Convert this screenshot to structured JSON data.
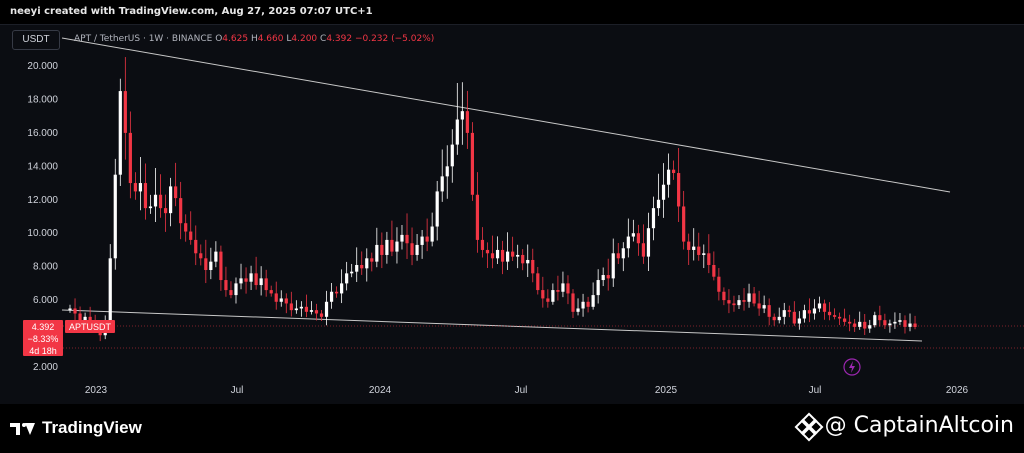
{
  "header": {
    "creator": "neeyi created with TradingView.com, Aug 27, 2025 07:07 UTC+1",
    "currency": "USDT"
  },
  "symbol": {
    "name": "APT / TetherUS · 1W · BINANCE",
    "o_label": "O",
    "o_value": "4.625",
    "h_label": "H",
    "h_value": "4.660",
    "l_label": "L",
    "l_value": "4.200",
    "c_label": "C",
    "c_value": "4.392",
    "change": "−0.232 (−5.02%)"
  },
  "price_tag": {
    "price": "4.392",
    "ticker": "APTUSDT",
    "change_pct": "−8.33%",
    "countdown": "4d 18h"
  },
  "footer": {
    "platform": "TradingView",
    "watermark": "@ CaptainAltcoin"
  },
  "colors": {
    "up": "#ffffff",
    "down": "#f23645",
    "trendline": "#c8c8c8",
    "background": "#0b0d12"
  },
  "chart_data": {
    "type": "candlestick",
    "title": "APT / TetherUS · 1W · BINANCE",
    "y_axis": {
      "ticks": [
        "20.000",
        "18.000",
        "16.000",
        "14.000",
        "12.000",
        "10.000",
        "8.000",
        "6.000",
        "4.000",
        "2.000"
      ],
      "range": [
        2,
        20
      ],
      "side": "left"
    },
    "x_axis": {
      "ticks": [
        "2023",
        "Jul",
        "2024",
        "Jul",
        "2025",
        "Jul",
        "2026"
      ]
    },
    "grid": false,
    "legend": "none",
    "closes": [
      5.5,
      5.2,
      4.8,
      5.0,
      4.7,
      4.4,
      3.9,
      4.5,
      8.5,
      13.5,
      18.5,
      16.0,
      13.0,
      12.5,
      13.0,
      11.5,
      11.6,
      12.3,
      11.5,
      11.2,
      12.8,
      12.1,
      10.6,
      10.1,
      9.6,
      8.8,
      8.5,
      7.8,
      8.3,
      8.9,
      7.2,
      6.6,
      6.3,
      7.0,
      7.3,
      7.1,
      7.6,
      6.9,
      7.3,
      6.6,
      6.4,
      5.9,
      6.1,
      5.8,
      5.4,
      5.5,
      5.6,
      5.3,
      5.4,
      5.2,
      5.0,
      5.9,
      6.5,
      6.4,
      7.0,
      7.6,
      7.7,
      8.1,
      7.9,
      8.5,
      8.3,
      9.3,
      8.7,
      9.6,
      8.9,
      9.5,
      9.9,
      9.4,
      8.7,
      9.3,
      9.8,
      9.5,
      10.4,
      12.5,
      13.4,
      14.0,
      15.3,
      16.8,
      17.3,
      16.0,
      12.3,
      9.6,
      9.0,
      8.8,
      8.5,
      9.0,
      8.3,
      8.9,
      8.6,
      8.7,
      8.2,
      8.4,
      7.6,
      6.6,
      6.1,
      5.9,
      6.6,
      6.5,
      7.0,
      6.4,
      5.3,
      5.5,
      5.9,
      5.6,
      6.3,
      7.2,
      7.5,
      7.3,
      8.8,
      8.5,
      9.1,
      9.8,
      10.0,
      9.4,
      8.6,
      10.3,
      11.5,
      12.0,
      12.9,
      13.8,
      13.6,
      11.6,
      9.5,
      9.0,
      9.2,
      8.7,
      8.8,
      8.1,
      7.4,
      6.5,
      6.0,
      5.8,
      5.7,
      6.0,
      5.9,
      6.4,
      5.8,
      5.5,
      5.7,
      5.0,
      4.8,
      5.0,
      5.4,
      5.3,
      4.6,
      4.9,
      5.4,
      5.2,
      5.5,
      5.8,
      5.3,
      5.1,
      5.0,
      4.9,
      4.7,
      4.6,
      4.4,
      4.7,
      4.3,
      4.5,
      5.1,
      4.8,
      4.5,
      4.6,
      4.7,
      4.8,
      4.4,
      4.6,
      4.392
    ]
  }
}
